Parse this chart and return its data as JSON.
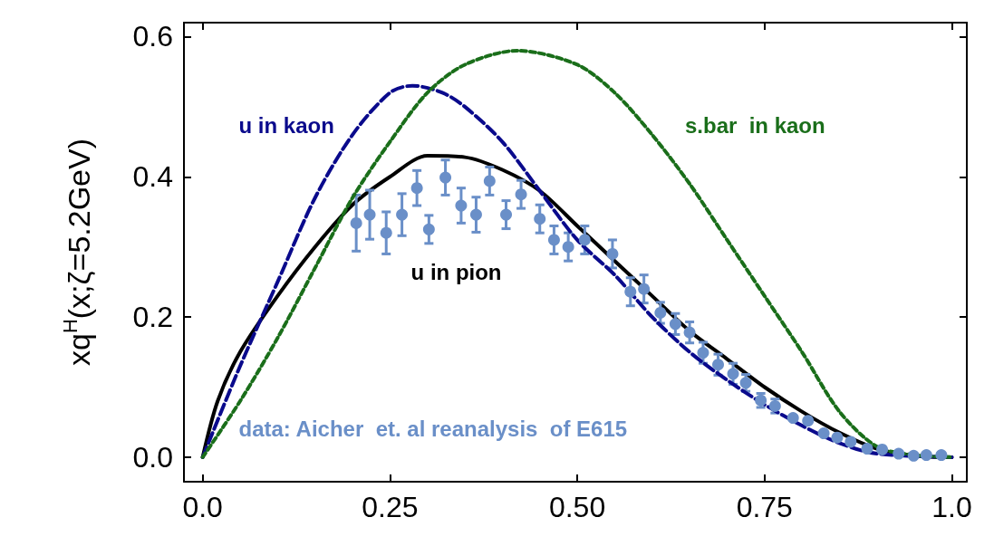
{
  "chart_data": {
    "type": "line",
    "ylabel": "xq$^{H}$(x;ζ=5.2GeV)",
    "xlim": [
      -0.025,
      1.02
    ],
    "ylim": [
      -0.035,
      0.62
    ],
    "xticks": [
      {
        "value": 0,
        "label": "0.0"
      },
      0.25,
      {
        "value": 0.5,
        "label": "0.50"
      },
      0.75,
      {
        "value": 1,
        "label": "1.0"
      }
    ],
    "yticks": [
      {
        "value": 0,
        "label": "0.0"
      },
      0.2,
      0.4,
      0.6
    ],
    "grid": false,
    "series": [
      {
        "color": "#0a0a8c",
        "line_style": "dashed",
        "marker": "none",
        "x": [
          0,
          0.05,
          0.1,
          0.15,
          0.2,
          0.25,
          0.28,
          0.32,
          0.35,
          0.4,
          0.45,
          0.5,
          0.55,
          0.6,
          0.65,
          0.7,
          0.75,
          0.8,
          0.85,
          0.9,
          1
        ],
        "values": [
          0,
          0.13,
          0.25,
          0.37,
          0.46,
          0.52,
          0.53,
          0.52,
          0.5,
          0.45,
          0.38,
          0.31,
          0.26,
          0.2,
          0.15,
          0.11,
          0.075,
          0.045,
          0.02,
          0.005,
          0
        ]
      },
      {
        "color": "#1a6e1a",
        "line_style": "dotted",
        "marker": "none",
        "x": [
          0,
          0.05,
          0.1,
          0.15,
          0.2,
          0.25,
          0.3,
          0.35,
          0.42,
          0.5,
          0.55,
          0.6,
          0.65,
          0.7,
          0.75,
          0.8,
          0.85,
          0.9,
          0.95,
          1
        ],
        "values": [
          0,
          0.08,
          0.17,
          0.27,
          0.37,
          0.45,
          0.52,
          0.56,
          0.58,
          0.56,
          0.52,
          0.46,
          0.39,
          0.31,
          0.23,
          0.15,
          0.065,
          0.015,
          0.003,
          0
        ]
      },
      {
        "color": "#000000",
        "line_style": "solid",
        "marker": "none",
        "x": [
          0,
          0.02,
          0.05,
          0.1,
          0.15,
          0.2,
          0.25,
          0.3,
          0.35,
          0.4,
          0.45,
          0.5,
          0.55,
          0.6,
          0.65,
          0.7,
          0.75,
          0.8,
          0.85,
          0.9,
          0.95,
          1
        ],
        "values": [
          0,
          0.08,
          0.15,
          0.23,
          0.3,
          0.36,
          0.4,
          0.43,
          0.428,
          0.41,
          0.38,
          0.33,
          0.28,
          0.23,
          0.18,
          0.14,
          0.1,
          0.065,
          0.035,
          0.012,
          0.002,
          0
        ]
      },
      {
        "type": "scatter",
        "color": "#6a8fc8",
        "marker": "circle",
        "x": [
          0.205,
          0.223,
          0.245,
          0.266,
          0.286,
          0.302,
          0.324,
          0.345,
          0.365,
          0.383,
          0.405,
          0.425,
          0.45,
          0.469,
          0.488,
          0.51,
          0.547,
          0.571,
          0.589,
          0.611,
          0.631,
          0.65,
          0.668,
          0.688,
          0.708,
          0.725,
          0.745,
          0.764,
          0.788,
          0.808,
          0.829,
          0.847,
          0.865,
          0.887,
          0.907,
          0.929,
          0.949,
          0.966,
          0.986
        ],
        "values": [
          0.334,
          0.346,
          0.32,
          0.346,
          0.384,
          0.325,
          0.399,
          0.359,
          0.346,
          0.394,
          0.346,
          0.375,
          0.34,
          0.31,
          0.3,
          0.31,
          0.29,
          0.236,
          0.24,
          0.206,
          0.19,
          0.178,
          0.149,
          0.132,
          0.119,
          0.106,
          0.081,
          0.073,
          0.056,
          0.052,
          0.034,
          0.028,
          0.022,
          0.012,
          0.011,
          0.005,
          0.002,
          0.003,
          0.003
        ],
        "errors": [
          0.04,
          0.035,
          0.03,
          0.03,
          0.025,
          0.02,
          0.025,
          0.025,
          0.025,
          0.02,
          0.02,
          0.02,
          0.02,
          0.02,
          0.02,
          0.02,
          0.02,
          0.02,
          0.02,
          0.015,
          0.015,
          0.015,
          0.015,
          0.015,
          0.015,
          0.012,
          0.01,
          0.01,
          null,
          null,
          null,
          null,
          null,
          null,
          null,
          null,
          null,
          null,
          null
        ]
      }
    ],
    "annotations": [
      "u in kaon",
      "s.bar  in kaon",
      "u in pion",
      "data: Aicher  et. al reanalysis  of E615"
    ]
  }
}
